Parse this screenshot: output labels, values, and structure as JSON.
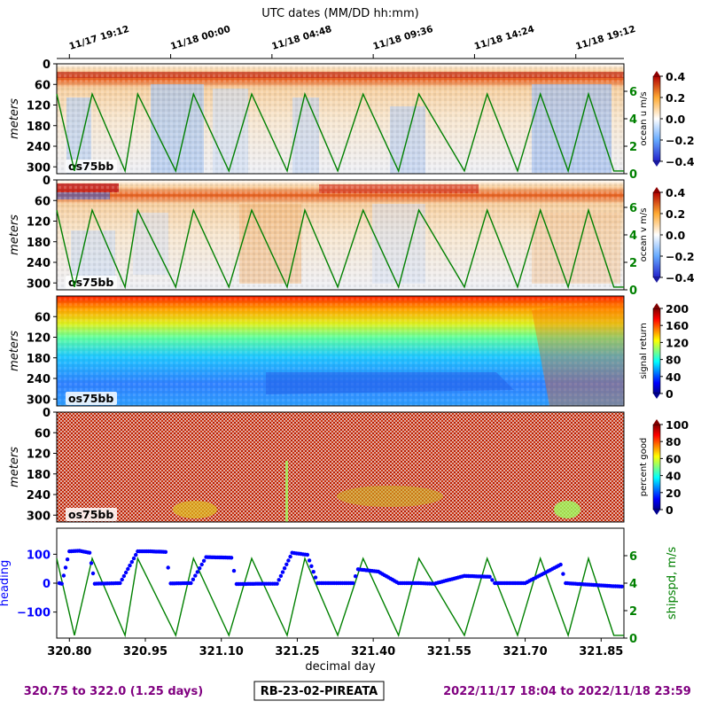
{
  "figure": {
    "top_axis_title": "UTC dates (MM/DD hh:mm)",
    "top_ticks": [
      "11/17 19:12",
      "11/18 00:00",
      "11/18 04:48",
      "11/18 09:36",
      "11/18 14:24",
      "11/18 19:12"
    ],
    "xlabel": "decimal day",
    "x_ticks": [
      "320.80",
      "320.95",
      "321.10",
      "321.25",
      "321.40",
      "321.55",
      "321.70",
      "321.85"
    ],
    "footer_left": "320.75 to 322.0 (1.25 days)",
    "footer_center": "RB-23-02-PIREATA",
    "footer_right": "2022/11/17 18:04 to 2022/11/18 23:59",
    "colors": {
      "footer": "#800080",
      "heading": "#0000ff",
      "shipspeed": "#008000"
    }
  },
  "panels": [
    {
      "label": "os75bb",
      "ylabel": "meters",
      "yticks": [
        "0",
        "60",
        "120",
        "180",
        "240",
        "300"
      ],
      "cbar_label": "ocean u m/s",
      "cbar_ticks": [
        "0.4",
        "0.2",
        "0.0",
        "−0.2",
        "−0.4"
      ],
      "right_ticks": [
        "6",
        "4",
        "2",
        "0"
      ]
    },
    {
      "label": "os75bb",
      "ylabel": "meters",
      "yticks": [
        "0",
        "60",
        "120",
        "180",
        "240",
        "300"
      ],
      "cbar_label": "ocean v m/s",
      "cbar_ticks": [
        "0.4",
        "0.2",
        "0.0",
        "−0.2",
        "−0.4"
      ],
      "right_ticks": [
        "6",
        "4",
        "2",
        "0"
      ]
    },
    {
      "label": "os75bb",
      "ylabel": "meters",
      "yticks": [
        "60",
        "120",
        "180",
        "240",
        "300"
      ],
      "cbar_label": "signal return",
      "cbar_ticks": [
        "200",
        "160",
        "120",
        "80",
        "40",
        "0"
      ]
    },
    {
      "label": "os75bb",
      "ylabel": "meters",
      "yticks": [
        "0",
        "60",
        "120",
        "180",
        "240",
        "300"
      ],
      "cbar_label": "percent good",
      "cbar_ticks": [
        "100",
        "80",
        "60",
        "40",
        "20",
        "0"
      ]
    }
  ],
  "bottom_panel": {
    "ylabel_left": "heading",
    "yticks_left": [
      "100",
      "0",
      "−100"
    ],
    "ylabel_right": "shipspd, m/s",
    "yticks_right": [
      "6",
      "4",
      "2",
      "0"
    ]
  },
  "chart_data": {
    "type": "line",
    "x_range": [
      320.775,
      321.895
    ],
    "depth_range_m": [
      0,
      320
    ],
    "series": [
      {
        "name": "shipspd, m/s",
        "steps": [
          [
            320.775,
            5.8
          ],
          [
            320.81,
            0.2
          ],
          [
            320.845,
            5.8
          ],
          [
            320.91,
            0.2
          ],
          [
            320.935,
            5.8
          ],
          [
            321.01,
            0.2
          ],
          [
            321.045,
            5.8
          ],
          [
            321.115,
            0.2
          ],
          [
            321.16,
            5.8
          ],
          [
            321.23,
            0.2
          ],
          [
            321.265,
            5.8
          ],
          [
            321.33,
            0.2
          ],
          [
            321.38,
            5.8
          ],
          [
            321.45,
            0.2
          ],
          [
            321.49,
            5.8
          ],
          [
            321.58,
            0.2
          ],
          [
            321.625,
            5.8
          ],
          [
            321.685,
            0.2
          ],
          [
            321.73,
            5.8
          ],
          [
            321.785,
            0.2
          ],
          [
            321.825,
            5.8
          ],
          [
            321.875,
            0.2
          ],
          [
            321.895,
            0.2
          ]
        ]
      },
      {
        "name": "heading",
        "points": [
          [
            320.78,
            0
          ],
          [
            320.785,
            -2
          ],
          [
            320.8,
            110
          ],
          [
            320.82,
            112
          ],
          [
            320.84,
            105
          ],
          [
            320.85,
            -2
          ],
          [
            320.9,
            0
          ],
          [
            320.935,
            110
          ],
          [
            320.96,
            110
          ],
          [
            320.99,
            108
          ],
          [
            321.0,
            -1
          ],
          [
            321.04,
            0
          ],
          [
            321.07,
            90
          ],
          [
            321.12,
            88
          ],
          [
            321.13,
            -3
          ],
          [
            321.18,
            -2
          ],
          [
            321.21,
            -2
          ],
          [
            321.24,
            105
          ],
          [
            321.27,
            98
          ],
          [
            321.29,
            0
          ],
          [
            321.36,
            0
          ],
          [
            321.37,
            48
          ],
          [
            321.41,
            40
          ],
          [
            321.45,
            0
          ],
          [
            321.49,
            0
          ],
          [
            321.52,
            -2
          ],
          [
            321.58,
            25
          ],
          [
            321.63,
            22
          ],
          [
            321.64,
            0
          ],
          [
            321.7,
            0
          ],
          [
            321.77,
            64
          ],
          [
            321.78,
            0
          ],
          [
            321.87,
            -10
          ],
          [
            321.895,
            -12
          ]
        ]
      }
    ]
  }
}
